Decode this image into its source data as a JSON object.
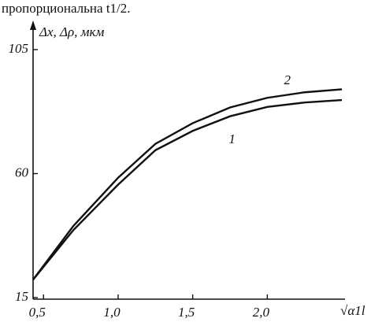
{
  "caption": "пропорциональна  t1/2.",
  "chart_data": {
    "type": "line",
    "y_label": "Δx, Δρ, мкм",
    "x_label": "√α1l",
    "xlim": [
      0.43,
      2.6
    ],
    "ylim": [
      15,
      113
    ],
    "xticks": [
      {
        "value": 0.5,
        "label": "0,5"
      },
      {
        "value": 1.0,
        "label": "1,0"
      },
      {
        "value": 1.5,
        "label": "1,5"
      },
      {
        "value": 2.0,
        "label": "2,0"
      }
    ],
    "yticks": [
      15,
      60,
      105
    ],
    "x": [
      0.43,
      0.7,
      1.0,
      1.25,
      1.5,
      1.75,
      2.0,
      2.25,
      2.5
    ],
    "series": [
      {
        "name": "1",
        "color": "#111111",
        "values": [
          21.5,
          39.5,
          56,
          68.5,
          75.5,
          80.8,
          84.2,
          85.8,
          86.7
        ]
      },
      {
        "name": "2",
        "color": "#111111",
        "values": [
          21.5,
          41,
          58.5,
          70.8,
          78.3,
          84,
          87.5,
          89.5,
          90.6
        ]
      }
    ]
  }
}
